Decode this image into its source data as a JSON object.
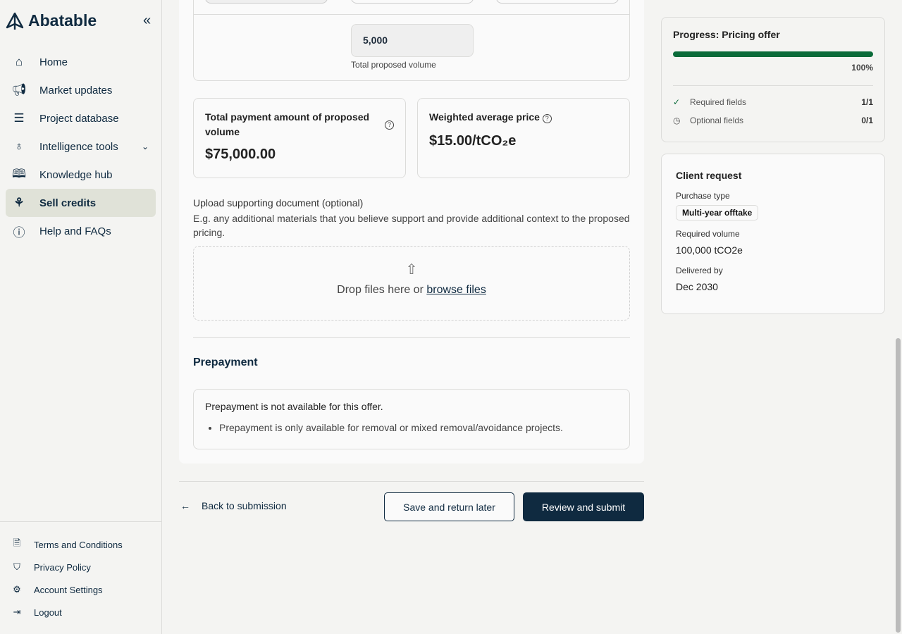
{
  "brand": {
    "name": "Abatable"
  },
  "sidebar": {
    "items": [
      {
        "label": "Home",
        "icon": "home-icon"
      },
      {
        "label": "Market updates",
        "icon": "megaphone-icon"
      },
      {
        "label": "Project database",
        "icon": "list-icon"
      },
      {
        "label": "Intelligence tools",
        "icon": "lightbulb-icon"
      },
      {
        "label": "Knowledge hub",
        "icon": "book-icon"
      },
      {
        "label": "Sell credits",
        "icon": "sprout-icon",
        "active": true
      },
      {
        "label": "Help and FAQs",
        "icon": "help-icon"
      }
    ],
    "footer": [
      {
        "label": "Terms and Conditions",
        "icon": "document-icon"
      },
      {
        "label": "Privacy Policy",
        "icon": "shield-icon"
      },
      {
        "label": "Account Settings",
        "icon": "gear-icon"
      },
      {
        "label": "Logout",
        "icon": "logout-icon"
      }
    ]
  },
  "volume": {
    "value": "5,000",
    "label": "Total proposed volume"
  },
  "totals": {
    "payment_title": "Total payment amount of proposed volume",
    "payment_value": "$75,000.00",
    "price_title": "Weighted average price",
    "price_value": "$15.00/tCO₂e"
  },
  "upload": {
    "title": "Upload supporting document (optional)",
    "desc": "E.g. any additional materials that you believe support and provide additional context to the proposed pricing.",
    "drop_text": "Drop files here or ",
    "browse": "browse files"
  },
  "prepayment": {
    "heading": "Prepayment",
    "message": "Prepayment is not available for this offer.",
    "bullet": "Prepayment is only available for removal or mixed removal/avoidance projects."
  },
  "actions": {
    "back": "Back to submission",
    "save": "Save and return later",
    "submit": "Review and submit"
  },
  "progress": {
    "title": "Progress: Pricing offer",
    "percent": 100,
    "percent_label": "100%",
    "required_label": "Required fields",
    "required_count": "1/1",
    "optional_label": "Optional fields",
    "optional_count": "0/1",
    "color": "#0b6b3a"
  },
  "client": {
    "title": "Client request",
    "purchase_type_label": "Purchase type",
    "purchase_type": "Multi-year offtake",
    "volume_label": "Required volume",
    "volume": "100,000 tCO2e",
    "delivered_label": "Delivered by",
    "delivered": "Dec 2030"
  }
}
